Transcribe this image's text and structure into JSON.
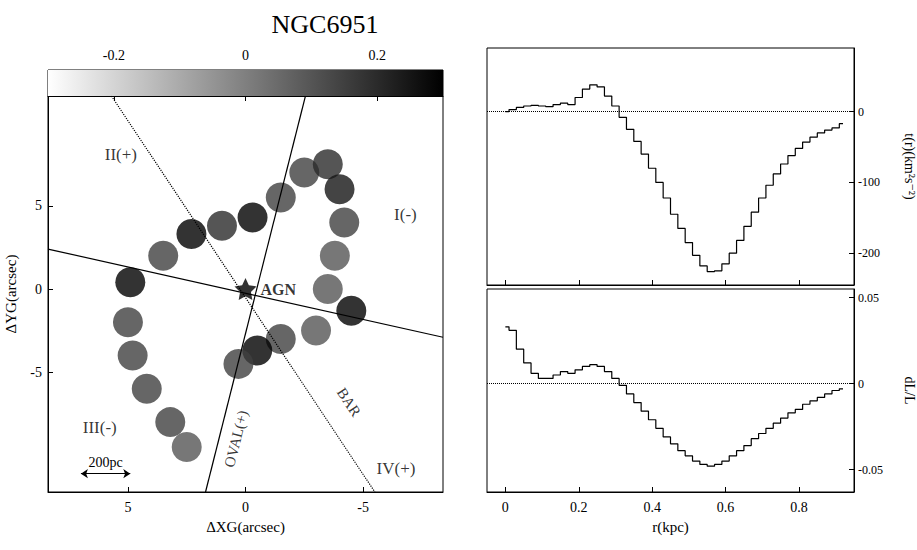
{
  "title": "NGC6951",
  "chart_data": [
    {
      "type": "map",
      "xlabel": "ΔXG(arcsec)",
      "ylabel": "ΔYG(arcsec)",
      "xlim": [
        8.4,
        -8.4
      ],
      "xticks": [
        5,
        0,
        -5
      ],
      "ylim": [
        -12.2,
        11.6
      ],
      "yticks": [
        -5,
        0,
        5
      ],
      "colorbar": {
        "range": [
          -0.3,
          0.3
        ],
        "ticks": [
          -0.2,
          0,
          0.2
        ]
      },
      "emission": {
        "x": [
          -0.3,
          -1.5,
          -2.5,
          -3.5,
          -4,
          -4.2,
          -3.8,
          -3.5,
          -4.5,
          -3,
          -1.5,
          -0.5,
          0.3,
          1,
          2.3,
          3.5,
          4.9,
          5,
          4.8,
          4.2,
          3.2,
          2.5
        ],
        "y": [
          4.3,
          5.5,
          7,
          7.5,
          6,
          4,
          2,
          0,
          -1.3,
          -2.5,
          -3,
          -3.7,
          -4.5,
          3.8,
          3.3,
          2,
          0.4,
          -2,
          -4,
          -6,
          -8,
          -9.5
        ],
        "values": [
          0.3,
          0.15,
          0.15,
          0.2,
          0.25,
          0.15,
          0.1,
          0.1,
          0.3,
          0.1,
          0.15,
          0.3,
          0.15,
          0.2,
          0.3,
          0.15,
          0.3,
          0.15,
          0.15,
          0.15,
          0.15,
          0.1
        ]
      },
      "lines": [
        {
          "x": [
            1.7,
            -2.55
          ],
          "y": [
            -12.2,
            11.6
          ],
          "line_style": "solid",
          "label": "OVAL(+)",
          "label_x": 0.4,
          "label_y": -9
        },
        {
          "x": [
            8.4,
            -8.4
          ],
          "y": [
            2.4,
            -2.9
          ],
          "line_style": "solid"
        },
        {
          "x": [
            5.7,
            -5.5
          ],
          "y": [
            11.6,
            -12.2
          ],
          "line_style": "dotted",
          "label": "BAR",
          "label_x": -4.4,
          "label_y": -6.8
        }
      ],
      "annotations": [
        {
          "text": "II(+)",
          "x": 5.3,
          "y": 8.1
        },
        {
          "text": "I(-)",
          "x": -6.8,
          "y": 4.5
        },
        {
          "text": "III(-)",
          "x": 6.2,
          "y": -8.3
        },
        {
          "text": "IV(+)",
          "x": -6.4,
          "y": -10.8
        }
      ],
      "nucleus": {
        "text": "AGN",
        "x": 0,
        "y": 0
      },
      "scale_bar": {
        "label": "200pc",
        "x": [
          7.0,
          4.9
        ],
        "y": -11.1
      }
    },
    {
      "type": "step",
      "ylabel": "t(r)(km²s⁻²)",
      "x": [
        0,
        0.02,
        0.04,
        0.06,
        0.08,
        0.1,
        0.12,
        0.14,
        0.16,
        0.18,
        0.2,
        0.22,
        0.24,
        0.26,
        0.28,
        0.3,
        0.32,
        0.34,
        0.36,
        0.38,
        0.4,
        0.42,
        0.44,
        0.46,
        0.48,
        0.5,
        0.52,
        0.54,
        0.56,
        0.58,
        0.6,
        0.62,
        0.64,
        0.66,
        0.68,
        0.7,
        0.72,
        0.74,
        0.76,
        0.78,
        0.8,
        0.82,
        0.84,
        0.86,
        0.88,
        0.9,
        0.92
      ],
      "values": [
        0,
        3,
        6,
        8,
        9,
        8,
        7,
        10,
        12,
        10,
        20,
        32,
        38,
        35,
        22,
        8,
        -8,
        -25,
        -42,
        -60,
        -80,
        -100,
        -122,
        -145,
        -165,
        -185,
        -203,
        -218,
        -226,
        -225,
        -215,
        -200,
        -182,
        -162,
        -142,
        -122,
        -104,
        -88,
        -74,
        -62,
        -52,
        -43,
        -36,
        -30,
        -26,
        -23,
        -17
      ],
      "color": "#000000",
      "xlim": [
        -0.05,
        0.95
      ],
      "xticks": [
        0,
        0.2,
        0.4,
        0.6,
        0.8
      ],
      "ylim": [
        -245,
        90
      ],
      "yticks": [
        -200,
        -100,
        0
      ],
      "tick_labels": "y",
      "reference": {
        "y": 0,
        "line_style": "dotted"
      }
    },
    {
      "type": "step",
      "xlabel": "r(kpc)",
      "ylabel": "dL/L",
      "x": [
        0,
        0.02,
        0.04,
        0.06,
        0.08,
        0.1,
        0.12,
        0.14,
        0.16,
        0.18,
        0.2,
        0.22,
        0.24,
        0.26,
        0.28,
        0.3,
        0.32,
        0.34,
        0.36,
        0.38,
        0.4,
        0.42,
        0.44,
        0.46,
        0.48,
        0.5,
        0.52,
        0.54,
        0.56,
        0.58,
        0.6,
        0.62,
        0.64,
        0.66,
        0.68,
        0.7,
        0.72,
        0.74,
        0.76,
        0.78,
        0.8,
        0.82,
        0.84,
        0.86,
        0.88,
        0.9,
        0.92
      ],
      "values": [
        0.033,
        0.031,
        0.02,
        0.012,
        0.006,
        0.003,
        0.003,
        0.005,
        0.007,
        0.006,
        0.008,
        0.01,
        0.011,
        0.01,
        0.007,
        0.003,
        -0.001,
        -0.006,
        -0.011,
        -0.016,
        -0.021,
        -0.026,
        -0.031,
        -0.035,
        -0.039,
        -0.042,
        -0.045,
        -0.047,
        -0.048,
        -0.047,
        -0.045,
        -0.042,
        -0.039,
        -0.036,
        -0.032,
        -0.029,
        -0.026,
        -0.023,
        -0.02,
        -0.017,
        -0.015,
        -0.012,
        -0.01,
        -0.008,
        -0.006,
        -0.004,
        -0.003
      ],
      "color": "#000000",
      "xlim": [
        -0.05,
        0.95
      ],
      "xticks": [
        0,
        0.2,
        0.4,
        0.6,
        0.8
      ],
      "ylim": [
        -0.063,
        0.055
      ],
      "yticks": [
        -0.05,
        0,
        0.05
      ],
      "reference": {
        "y": 0,
        "line_style": "dotted"
      }
    }
  ]
}
